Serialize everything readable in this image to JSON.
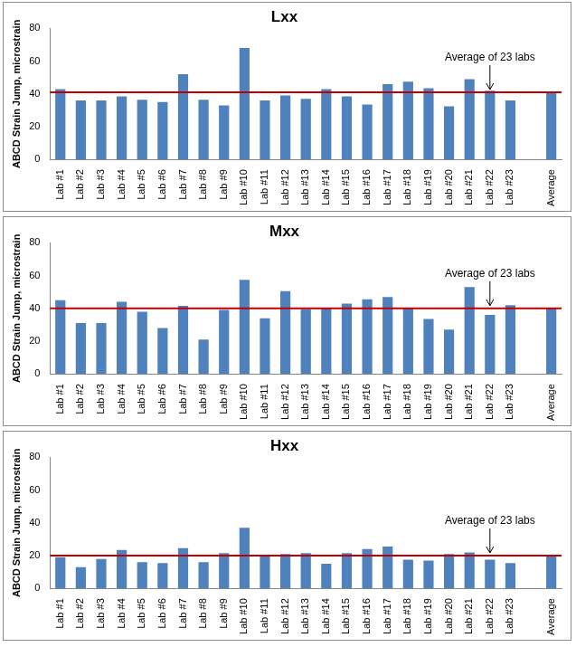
{
  "chart_data": [
    {
      "type": "bar",
      "title": "Lxx",
      "y_label": "ABCD Strain Jump, microstrain",
      "color": "#4f81bd",
      "grid": false,
      "categories": [
        "Lab #1",
        "Lab #2",
        "Lab #3",
        "Lab #4",
        "Lab #5",
        "Lab #6",
        "Lab #7",
        "Lab #8",
        "Lab #9",
        "Lab #10",
        "Lab #11",
        "Lab #12",
        "Lab #13",
        "Lab #14",
        "Lab #15",
        "Lab #16",
        "Lab #17",
        "Lab #18",
        "Lab #19",
        "Lab #20",
        "Lab #21",
        "Lab #22",
        "Lab #23",
        null,
        "Average"
      ],
      "values": [
        43,
        36,
        36,
        38.5,
        36.5,
        35,
        52,
        36.5,
        33,
        68,
        36,
        39,
        37,
        43,
        38.5,
        33.5,
        46,
        47.5,
        43.5,
        32.5,
        49,
        42,
        36,
        null,
        41
      ],
      "ylim": [
        0,
        80
      ],
      "yticks": [
        0,
        20,
        40,
        60,
        80
      ],
      "reference_line": {
        "value": 41,
        "label": "Average of 23 labs"
      }
    },
    {
      "type": "bar",
      "title": "Mxx",
      "y_label": "ABCD Strain Jump, microstrain",
      "color": "#4f81bd",
      "grid": false,
      "categories": [
        "Lab #1",
        "Lab #2",
        "Lab #3",
        "Lab #4",
        "Lab #5",
        "Lab #6",
        "Lab #7",
        "Lab #8",
        "Lab #9",
        "Lab #10",
        "Lab #11",
        "Lab #12",
        "Lab #13",
        "Lab #14",
        "Lab #15",
        "Lab #16",
        "Lab #17",
        "Lab #18",
        "Lab #19",
        "Lab #20",
        "Lab #21",
        "Lab #22",
        "Lab #23",
        null,
        "Average"
      ],
      "values": [
        45,
        31,
        31,
        44,
        38,
        28,
        41.5,
        21,
        39,
        57.5,
        34,
        50.5,
        39.5,
        40.5,
        43,
        45.5,
        47,
        40,
        33.5,
        27,
        53,
        36,
        42,
        null,
        40
      ],
      "ylim": [
        0,
        80
      ],
      "yticks": [
        0,
        20,
        40,
        60,
        80
      ],
      "reference_line": {
        "value": 40,
        "label": "Average of 23 labs"
      }
    },
    {
      "type": "bar",
      "title": "Hxx",
      "y_label": "ABCD Strain Jump, microstrain",
      "color": "#4f81bd",
      "grid": false,
      "categories": [
        "Lab #1",
        "Lab #2",
        "Lab #3",
        "Lab #4",
        "Lab #5",
        "Lab #6",
        "Lab #7",
        "Lab #8",
        "Lab #9",
        "Lab #10",
        "Lab #11",
        "Lab #12",
        "Lab #13",
        "Lab #14",
        "Lab #15",
        "Lab #16",
        "Lab #17",
        "Lab #18",
        "Lab #19",
        "Lab #20",
        "Lab #21",
        "Lab #22",
        "Lab #23",
        null,
        "Average"
      ],
      "values": [
        19,
        13,
        18,
        23.5,
        16,
        15.5,
        24.5,
        16,
        21.5,
        37,
        20,
        21,
        21.5,
        15,
        21.5,
        24,
        25.5,
        17.5,
        17,
        21,
        22,
        17.5,
        15.5,
        null,
        20
      ],
      "ylim": [
        0,
        80
      ],
      "yticks": [
        0,
        20,
        40,
        60,
        80
      ],
      "reference_line": {
        "value": 20,
        "label": "Average of 23 labs"
      }
    }
  ]
}
